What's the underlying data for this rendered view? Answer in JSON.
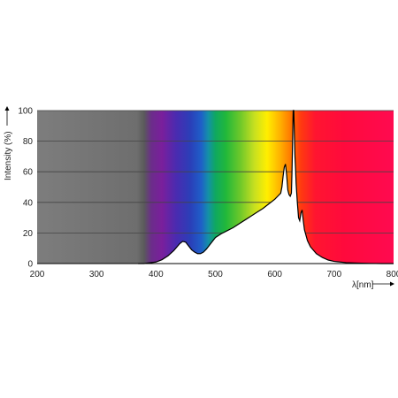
{
  "chart_data": {
    "type": "area",
    "xlabel": "λ[nm]",
    "ylabel": "Intensity (%)",
    "xlim": [
      200,
      800
    ],
    "ylim": [
      0,
      100
    ],
    "x_ticks": [
      200,
      300,
      400,
      500,
      600,
      700,
      800
    ],
    "y_ticks": [
      0,
      20,
      40,
      60,
      80,
      100
    ],
    "grid": true,
    "background": "visible light spectrum gradient (grey below ~370 nm, violet to red above)",
    "series": [
      {
        "x": [
          370,
          380,
          390,
          400,
          410,
          420,
          430,
          440,
          445,
          450,
          455,
          460,
          465,
          470,
          475,
          480,
          485,
          490,
          500,
          510,
          520,
          530,
          540,
          550,
          560,
          570,
          580,
          590,
          600,
          605,
          610,
          612,
          614,
          616,
          618,
          620,
          622,
          624,
          626,
          628,
          629,
          630,
          631,
          632,
          633,
          634,
          635,
          636,
          638,
          640,
          642,
          644,
          646,
          648,
          650,
          655,
          660,
          670,
          680,
          690,
          700,
          720,
          740,
          760,
          780,
          800
        ],
        "y": [
          0,
          0,
          0.5,
          1,
          2.5,
          5,
          8.5,
          13,
          14.5,
          14,
          11.5,
          9,
          7.5,
          6.5,
          6.5,
          7.5,
          9.5,
          12,
          17,
          19.5,
          21.5,
          23.5,
          26,
          28.5,
          31,
          33.5,
          36,
          39,
          42,
          44,
          46,
          50,
          57,
          63,
          65,
          58,
          48,
          45,
          44,
          46,
          60,
          80,
          100,
          100,
          85,
          70,
          62,
          52,
          40,
          30,
          28,
          33,
          35,
          28,
          22,
          15,
          11,
          6.5,
          4,
          2.3,
          1.4,
          0.6,
          0.3,
          0.1,
          0,
          0
        ]
      }
    ],
    "colors": {
      "curve": "#000000",
      "area_fill": "#ffffff",
      "grid": "#444444"
    }
  }
}
